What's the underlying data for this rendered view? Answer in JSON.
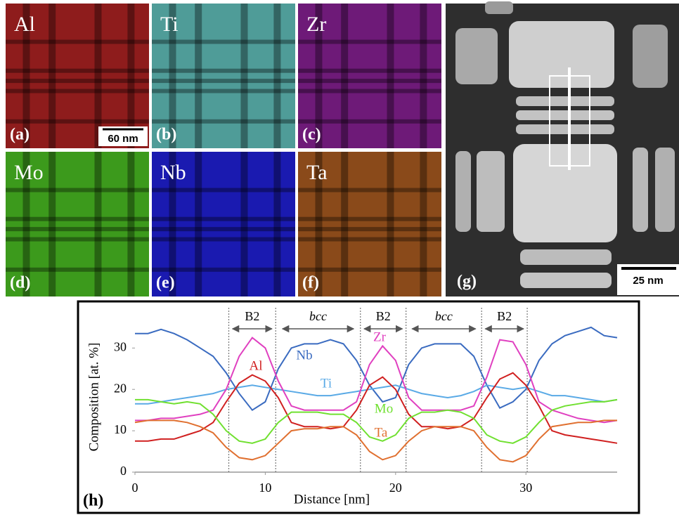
{
  "panels": [
    {
      "element": "Al",
      "label": "(a)",
      "color": "#8e1c1c"
    },
    {
      "element": "Ti",
      "label": "(b)",
      "color": "#4f9c98"
    },
    {
      "element": "Zr",
      "label": "(c)",
      "color": "#6e1a78"
    },
    {
      "element": "Mo",
      "label": "(d)",
      "color": "#3c9a1c"
    },
    {
      "element": "Nb",
      "label": "(e)",
      "color": "#1a1ab0"
    },
    {
      "element": "Ta",
      "label": "(f)",
      "color": "#8a4a1a"
    },
    {
      "label": "(g)"
    }
  ],
  "scale_bars": [
    "60 nm",
    "25 nm"
  ],
  "chart_data": {
    "type": "line",
    "panel_label": "(h)",
    "xlabel": "Distance [nm]",
    "ylabel": "Composition [at. %]",
    "x": [
      0,
      1,
      2,
      3,
      4,
      5,
      6,
      7,
      8,
      9,
      10,
      11,
      12,
      13,
      14,
      15,
      16,
      17,
      18,
      19,
      20,
      21,
      22,
      23,
      24,
      25,
      26,
      27,
      28,
      29,
      30,
      31,
      32,
      33,
      34,
      35,
      36,
      37
    ],
    "series": [
      {
        "name": "Nb",
        "color": "#3a6bc0",
        "values": [
          33.5,
          33.5,
          34.5,
          33.5,
          32,
          30,
          28,
          24,
          19,
          15,
          17,
          25,
          30,
          31,
          31,
          32,
          31,
          27,
          21,
          17,
          18,
          26,
          30,
          31,
          31,
          31,
          28,
          21,
          15.5,
          17,
          20,
          27,
          31,
          33,
          34,
          35,
          33,
          32.5
        ]
      },
      {
        "name": "Ti",
        "color": "#5aaae6",
        "values": [
          16.5,
          16.5,
          17,
          17.5,
          18,
          18.5,
          19,
          20,
          20.5,
          21,
          20.5,
          20,
          19.5,
          19,
          18.5,
          18.5,
          19,
          19.5,
          20,
          20.5,
          21,
          20,
          19,
          18.5,
          18,
          18.5,
          19.5,
          21,
          20.5,
          20,
          20.5,
          19.5,
          18.5,
          18.5,
          18,
          17.5,
          17,
          17.5
        ]
      },
      {
        "name": "Zr",
        "color": "#e040c0",
        "values": [
          12.5,
          12.5,
          13,
          13,
          13.5,
          14,
          15,
          20,
          28,
          32.5,
          30,
          22,
          16,
          15,
          15,
          15,
          15,
          17,
          26,
          30.5,
          27,
          18,
          15,
          15,
          15,
          15,
          16,
          23,
          32,
          31.5,
          26,
          17,
          15,
          14,
          13,
          12.5,
          12,
          12.5
        ]
      },
      {
        "name": "Al",
        "color": "#d02020",
        "values": [
          7.5,
          7.5,
          8,
          8,
          9,
          10,
          12,
          17,
          21.5,
          23.5,
          22,
          18,
          12,
          11,
          11,
          10.5,
          11,
          15,
          21,
          23,
          20,
          14,
          11,
          11,
          10.5,
          11,
          13,
          18,
          22.5,
          24,
          21,
          16,
          10,
          9,
          8.5,
          8,
          7.5,
          7
        ]
      },
      {
        "name": "Mo",
        "color": "#70e030",
        "values": [
          17.5,
          17.5,
          17,
          16.5,
          17,
          16.5,
          14,
          10,
          7.5,
          7,
          8,
          12,
          14.5,
          14.5,
          14.5,
          14,
          14,
          12,
          8.5,
          7.5,
          9,
          13,
          14.5,
          14.5,
          15,
          14.5,
          13,
          9,
          7.5,
          7,
          8.5,
          12,
          15,
          16,
          16.5,
          17,
          17,
          17.5
        ]
      },
      {
        "name": "Ta",
        "color": "#e07030",
        "values": [
          12,
          12.5,
          12.5,
          12.5,
          12,
          11,
          9.5,
          6,
          3.5,
          3,
          4,
          7,
          10,
          10.5,
          10.5,
          11,
          11,
          9,
          5,
          3,
          4,
          7.5,
          10,
          11,
          11,
          11,
          10,
          6,
          3,
          2.5,
          4,
          8,
          11,
          11.5,
          12,
          12,
          12.5,
          12.5
        ]
      }
    ],
    "xlim": [
      0,
      37
    ],
    "ylim": [
      0,
      36
    ],
    "xticks": [
      0,
      10,
      20,
      30
    ],
    "yticks": [
      0,
      10,
      20,
      30
    ],
    "phase_boundaries": [
      7.2,
      10.8,
      17.3,
      20.8,
      26.6,
      30.1
    ],
    "regions": [
      "B2",
      "bcc",
      "B2",
      "bcc",
      "B2"
    ]
  }
}
